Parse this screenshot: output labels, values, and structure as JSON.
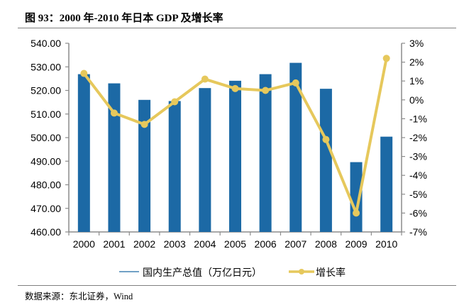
{
  "title": "图 93：2000 年-2010 年日本 GDP 及增长率",
  "source": "数据来源：东北证券，Wind",
  "colors": {
    "bar": "#1c69a5",
    "line": "#e6c85c",
    "axis": "#8c8c8c",
    "text": "#000000"
  },
  "chart_data": {
    "type": "bar+line",
    "title": "2000 年-2010 年日本 GDP 及增长率",
    "categories": [
      "2000",
      "2001",
      "2002",
      "2003",
      "2004",
      "2005",
      "2006",
      "2007",
      "2008",
      "2009",
      "2010"
    ],
    "series": [
      {
        "name": "国内生产总值（万亿日元）",
        "type": "bar",
        "axis": "left",
        "values": [
          526.9,
          523.0,
          516.0,
          515.5,
          521.0,
          524.1,
          526.9,
          531.7,
          520.7,
          489.6,
          500.4
        ]
      },
      {
        "name": "增长率",
        "type": "line",
        "axis": "right",
        "unit": "%",
        "values": [
          1.4,
          -0.7,
          -1.3,
          -0.1,
          1.1,
          0.6,
          0.5,
          0.9,
          -2.1,
          -6.0,
          2.2
        ]
      }
    ],
    "y_left": {
      "min": 460,
      "max": 540,
      "step": 10,
      "ticks": [
        "540.00",
        "530.00",
        "520.00",
        "510.00",
        "500.00",
        "490.00",
        "480.00",
        "470.00",
        "460.00"
      ]
    },
    "y_right": {
      "min": -7,
      "max": 3,
      "step": 1,
      "ticks": [
        "3%",
        "2%",
        "1%",
        "0%",
        "-1%",
        "-2%",
        "-3%",
        "-4%",
        "-5%",
        "-6%",
        "-7%"
      ]
    },
    "grid": false,
    "legend": {
      "position": "bottom",
      "entries": [
        "国内生产总值（万亿日元）",
        "增长率"
      ]
    }
  }
}
